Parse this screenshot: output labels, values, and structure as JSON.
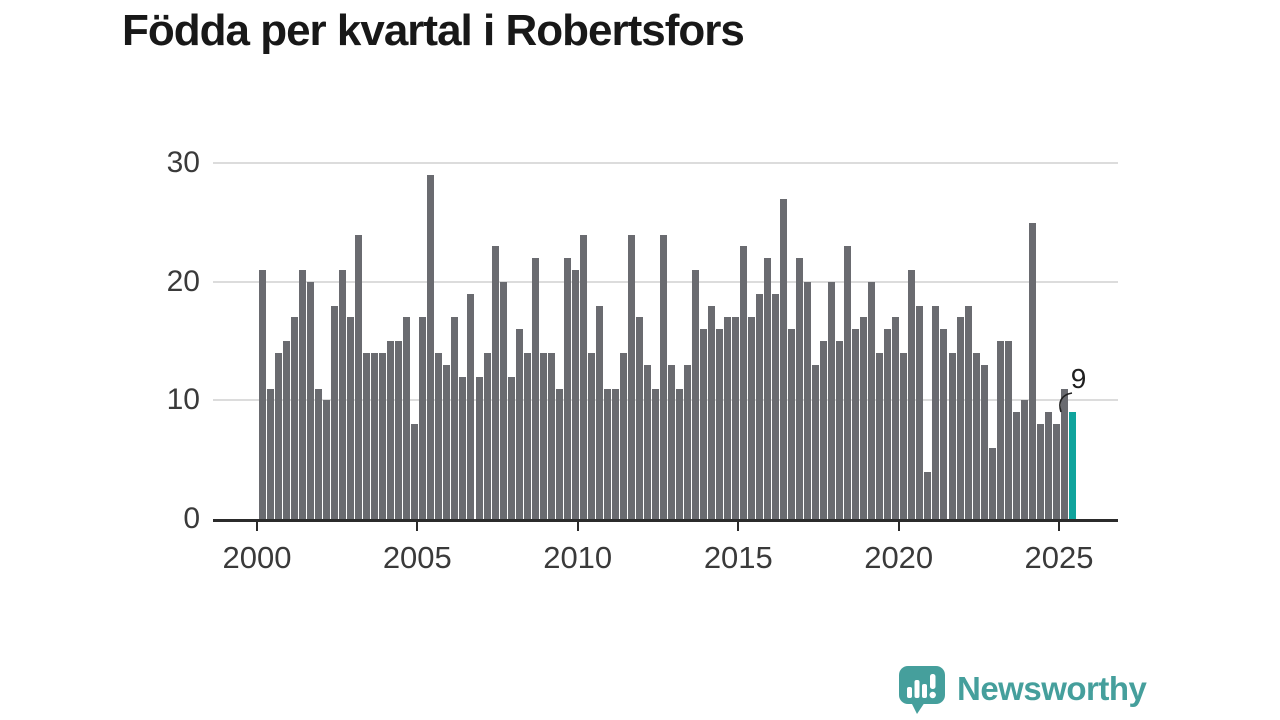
{
  "title": "Födda per kvartal i Robertsfors",
  "chart_data": {
    "type": "bar",
    "title": "Födda per kvartal i Robertsfors",
    "frequency": "quarterly",
    "x_start": "2000-Q1",
    "x_end": "2025-Q2",
    "values": [
      21,
      11,
      14,
      15,
      17,
      21,
      20,
      11,
      10,
      18,
      21,
      17,
      24,
      14,
      14,
      14,
      15,
      15,
      17,
      8,
      17,
      29,
      14,
      13,
      17,
      12,
      19,
      12,
      14,
      23,
      20,
      12,
      16,
      14,
      22,
      14,
      14,
      11,
      22,
      21,
      24,
      14,
      18,
      11,
      11,
      14,
      24,
      17,
      13,
      11,
      24,
      13,
      11,
      13,
      21,
      16,
      18,
      16,
      17,
      17,
      23,
      17,
      19,
      22,
      19,
      27,
      16,
      22,
      20,
      13,
      15,
      20,
      15,
      23,
      16,
      17,
      20,
      14,
      16,
      17,
      14,
      21,
      18,
      4,
      18,
      16,
      14,
      17,
      18,
      14,
      13,
      6,
      15,
      15,
      9,
      10,
      25,
      8,
      9,
      8,
      11,
      9
    ],
    "highlight": {
      "index": 101,
      "quarter": "2025-Q2",
      "value": 9,
      "label": "9"
    },
    "xticks": [
      "2000",
      "2005",
      "2010",
      "2015",
      "2020",
      "2025"
    ],
    "yticks": [
      0,
      10,
      20,
      30
    ],
    "ylim": [
      0,
      30
    ],
    "grid": "horizontal",
    "legend": "none",
    "colors": {
      "bar": "#6a6b70",
      "highlight": "#10a49d",
      "grid": "#dcdcdc",
      "axis": "#2b2b2b",
      "tick_text": "#3a3a3a",
      "annotation_text": "#1f1f1f"
    }
  },
  "annotation": {
    "text": "9"
  },
  "logo": {
    "text": "Newsworthy",
    "color": "#459f9c"
  }
}
